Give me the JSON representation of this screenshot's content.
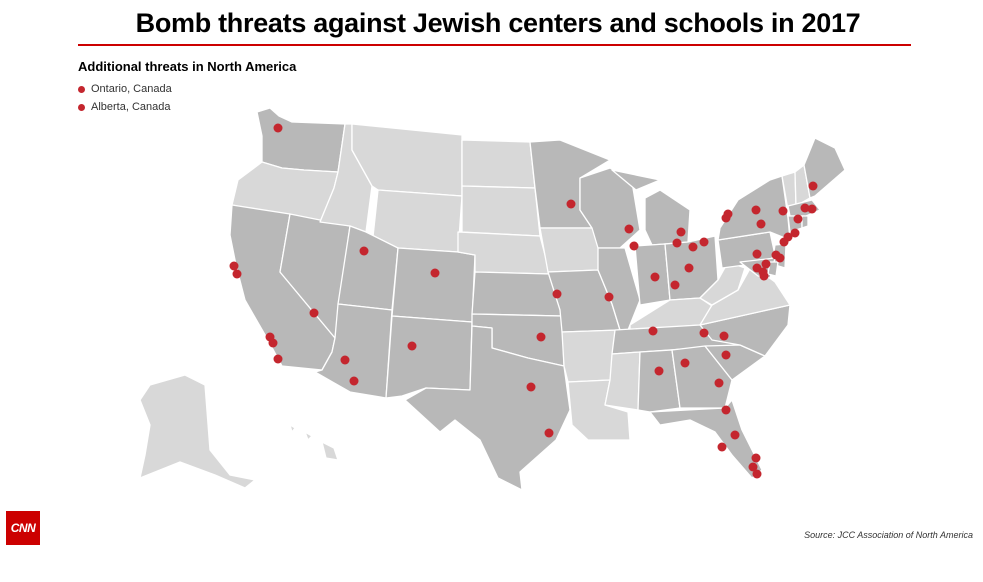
{
  "title": "Bomb threats against Jewish centers and schools in 2017",
  "subtitle": "Additional threats in North America",
  "legend": [
    {
      "label": "Ontario, Canada"
    },
    {
      "label": "Alberta, Canada"
    }
  ],
  "source": "Source: JCC Association of North America",
  "logo_text": "CNN",
  "colors": {
    "accent": "#cc0000",
    "marker": "#c4262e",
    "state_with_threat": "#b8b8b8",
    "state_without_threat": "#d8d8d8"
  },
  "states_without_threats": [
    "Oregon",
    "Idaho",
    "Montana",
    "Wyoming",
    "North Dakota",
    "South Dakota",
    "Nebraska",
    "Iowa",
    "Arkansas",
    "Louisiana",
    "Mississippi",
    "Kentucky",
    "West Virginia",
    "Virginia",
    "Vermont",
    "New Hampshire",
    "Alaska",
    "Hawaii"
  ]
}
